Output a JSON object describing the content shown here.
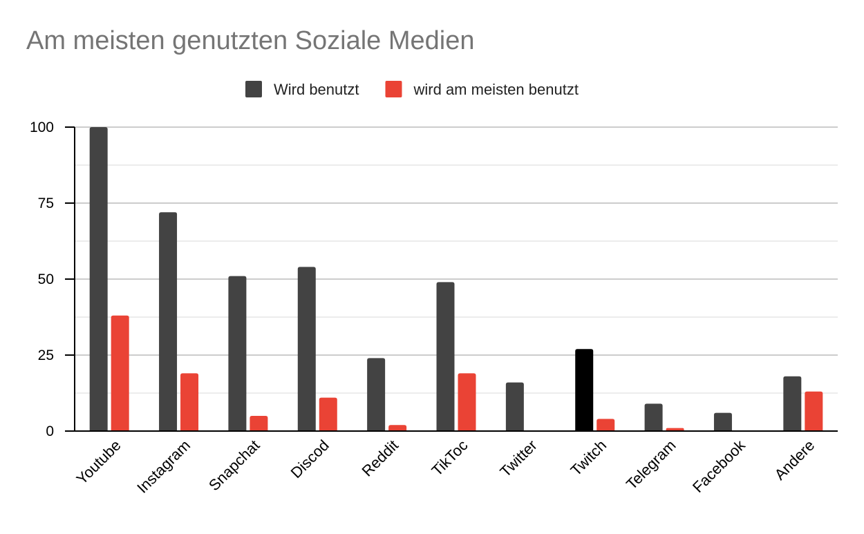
{
  "chart_data": {
    "type": "bar",
    "title": "Am meisten genutzten Soziale Medien",
    "xlabel": "",
    "ylabel": "",
    "categories": [
      "Youtube",
      "Instagram",
      "Snapchat",
      "Discod",
      "Reddit",
      "TikToc",
      "Twitter",
      "Twitch",
      "Telegram",
      "Facebook",
      "Andere"
    ],
    "series": [
      {
        "name": "Wird benutzt",
        "color": "#434343",
        "values": [
          100,
          72,
          51,
          54,
          24,
          49,
          16,
          27,
          9,
          6,
          18
        ],
        "point_colors": {
          "7": "#000000"
        }
      },
      {
        "name": "wird am meisten benutzt",
        "color": "#ea4335",
        "values": [
          38,
          19,
          5,
          11,
          2,
          19,
          0,
          4,
          1,
          0,
          13
        ]
      }
    ],
    "yticks": [
      0,
      25,
      50,
      75,
      100
    ],
    "ylim": [
      0,
      100
    ],
    "grid": true,
    "minor_gridlines": true,
    "legend_position": "top-center",
    "gridline_color": "#cccccc",
    "axis_color": "#000000"
  }
}
